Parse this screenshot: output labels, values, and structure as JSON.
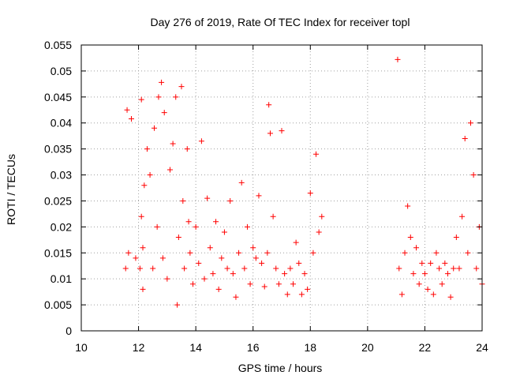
{
  "chart_data": {
    "type": "scatter",
    "title": "Day 276 of 2019, Rate Of TEC Index for receiver topl",
    "xlabel": "GPS time / hours",
    "ylabel": "ROTI / TECUs",
    "xlim": [
      10,
      24
    ],
    "ylim": [
      0,
      0.055
    ],
    "x_ticks": [
      10,
      12,
      14,
      16,
      18,
      20,
      22,
      24
    ],
    "y_ticks": [
      0,
      0.005,
      0.01,
      0.015,
      0.02,
      0.025,
      0.03,
      0.035,
      0.04,
      0.045,
      0.05,
      0.055
    ],
    "x_tick_labels": [
      "10",
      "12",
      "14",
      "16",
      "18",
      "20",
      "22",
      "24"
    ],
    "y_tick_labels": [
      "0",
      "0.005",
      "0.01",
      "0.015",
      "0.02",
      "0.025",
      "0.03",
      "0.035",
      "0.04",
      "0.045",
      "0.05",
      "0.055"
    ],
    "grid": true,
    "legend": "none",
    "marker": "plus",
    "series_color": "#ff0000",
    "axis_color": "#000000",
    "grid_color": "#a0a0a0",
    "series": [
      {
        "x": [
          11.55,
          11.6,
          11.65,
          11.75,
          11.9,
          12.05,
          12.1,
          12.15,
          12.1,
          12.2,
          12.15,
          12.3,
          12.4,
          12.5,
          12.55,
          12.65,
          12.7,
          12.8,
          12.85,
          12.9,
          13.0,
          13.1,
          13.2,
          13.3,
          13.35,
          13.4,
          13.5,
          13.55,
          13.6,
          13.7,
          13.75,
          13.8,
          13.9,
          14.0,
          14.1,
          14.2,
          14.3,
          14.4,
          14.5,
          14.6,
          14.7,
          14.8,
          14.9,
          15.0,
          15.1,
          15.2,
          15.3,
          15.4,
          15.5,
          15.6,
          15.7,
          15.8,
          15.9,
          16.0,
          16.1,
          16.2,
          16.3,
          16.4,
          16.5,
          16.55,
          16.6,
          16.7,
          16.8,
          16.9,
          17.0,
          17.1,
          17.2,
          17.3,
          17.4,
          17.5,
          17.6,
          17.7,
          17.8,
          17.9,
          18.0,
          18.1,
          18.2,
          18.3,
          18.4,
          21.05,
          21.1,
          21.2,
          21.3,
          21.4,
          21.5,
          21.6,
          21.7,
          21.8,
          21.9,
          22.0,
          22.1,
          22.2,
          22.3,
          22.4,
          22.5,
          22.6,
          22.7,
          22.8,
          22.9,
          23.0,
          23.1,
          23.2,
          23.3,
          23.4,
          23.5,
          23.6,
          23.7,
          23.8,
          23.9,
          24.0
        ],
        "y": [
          0.012,
          0.0425,
          0.015,
          0.0408,
          0.014,
          0.012,
          0.0445,
          0.008,
          0.022,
          0.028,
          0.016,
          0.035,
          0.03,
          0.012,
          0.039,
          0.02,
          0.045,
          0.0478,
          0.014,
          0.042,
          0.01,
          0.031,
          0.036,
          0.045,
          0.005,
          0.018,
          0.047,
          0.025,
          0.012,
          0.035,
          0.021,
          0.015,
          0.009,
          0.02,
          0.013,
          0.0365,
          0.01,
          0.0255,
          0.016,
          0.011,
          0.021,
          0.008,
          0.014,
          0.019,
          0.012,
          0.025,
          0.011,
          0.0065,
          0.015,
          0.0285,
          0.012,
          0.02,
          0.009,
          0.016,
          0.014,
          0.026,
          0.013,
          0.0085,
          0.015,
          0.0435,
          0.038,
          0.022,
          0.012,
          0.009,
          0.0385,
          0.011,
          0.007,
          0.012,
          0.009,
          0.017,
          0.013,
          0.007,
          0.011,
          0.008,
          0.0265,
          0.015,
          0.034,
          0.019,
          0.022,
          0.0522,
          0.012,
          0.007,
          0.015,
          0.024,
          0.018,
          0.011,
          0.016,
          0.009,
          0.013,
          0.011,
          0.008,
          0.013,
          0.007,
          0.015,
          0.012,
          0.009,
          0.013,
          0.011,
          0.0065,
          0.012,
          0.018,
          0.012,
          0.022,
          0.037,
          0.015,
          0.04,
          0.03,
          0.012,
          0.02,
          0.009
        ]
      }
    ]
  }
}
